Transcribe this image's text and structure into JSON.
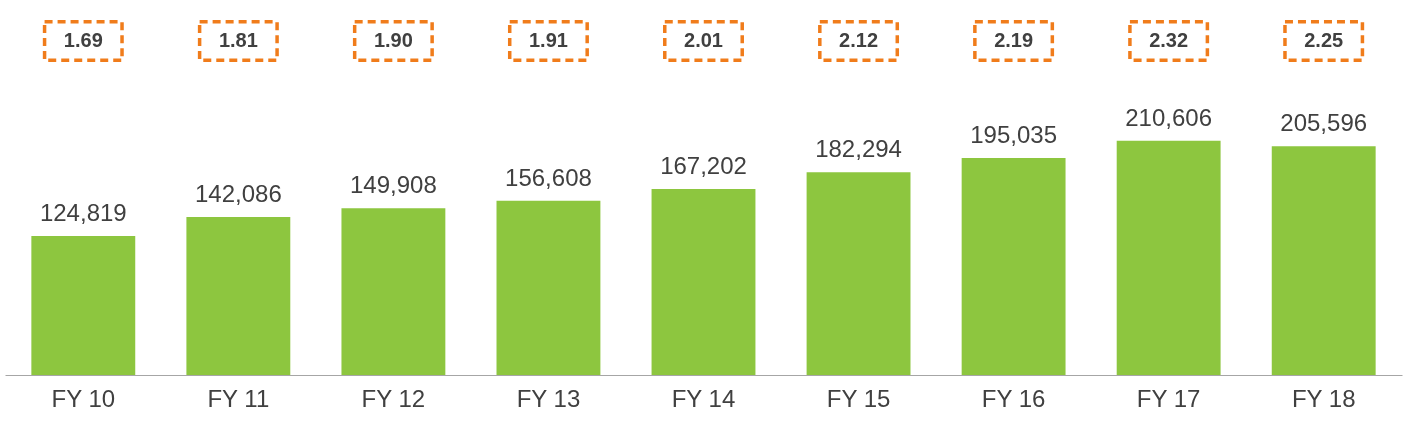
{
  "chart_data": {
    "type": "bar",
    "categories": [
      "FY 10",
      "FY 11",
      "FY 12",
      "FY 13",
      "FY 14",
      "FY 15",
      "FY 16",
      "FY 17",
      "FY 18"
    ],
    "series": [
      {
        "color": "#8dc63f",
        "values": [
          124819,
          142086,
          149908,
          156608,
          167202,
          182294,
          195035,
          210606,
          205596
        ],
        "value_labels": [
          "124,819",
          "142,086",
          "149,908",
          "156,608",
          "167,202",
          "182,294",
          "195,035",
          "210,606",
          "205,596"
        ]
      }
    ],
    "annotations": [
      "1.69",
      "1.81",
      "1.90",
      "1.91",
      "2.01",
      "2.12",
      "2.19",
      "2.32",
      "2.25"
    ]
  }
}
